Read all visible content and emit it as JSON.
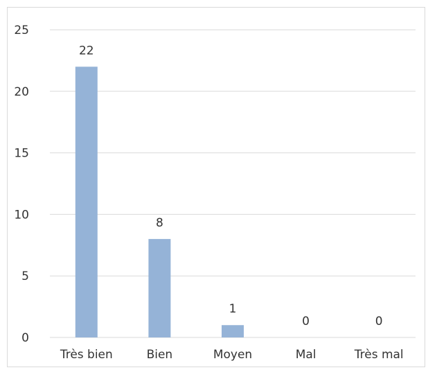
{
  "chart_data": {
    "type": "bar",
    "categories": [
      "Très bien",
      "Bien",
      "Moyen",
      "Mal",
      "Très mal"
    ],
    "values": [
      22,
      8,
      1,
      0,
      0
    ],
    "data_labels": [
      "22",
      "8",
      "1",
      "0",
      "0"
    ],
    "title": "",
    "xlabel": "",
    "ylabel": "",
    "ylim": [
      0,
      25
    ],
    "yticks": [
      "0",
      "5",
      "10",
      "15",
      "20",
      "25"
    ],
    "grid": true,
    "legend": "none",
    "bar_color": "#95b3d7",
    "grid_color": "#d9d9d9",
    "text_color": "#333333"
  }
}
